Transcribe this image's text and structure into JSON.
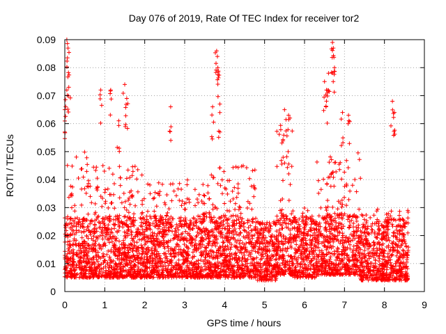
{
  "chart_data": {
    "type": "scatter",
    "title": "Day 076 of 2019, Rate Of TEC Index for receiver tor2",
    "xlabel": "GPS time / hours",
    "ylabel": "ROTI / TECUs",
    "xlim": [
      0,
      9
    ],
    "ylim": [
      0,
      0.09
    ],
    "xticks": [
      "0",
      "1",
      "2",
      "3",
      "4",
      "5",
      "6",
      "7",
      "8",
      "9"
    ],
    "yticks": [
      "0",
      "0.01",
      "0.02",
      "0.03",
      "0.04",
      "0.05",
      "0.06",
      "0.07",
      "0.08",
      "0.09"
    ],
    "grid": true,
    "marker": "+",
    "color": "#ff0000",
    "data_coverage_hours": [
      0,
      8.6
    ],
    "series": [
      {
        "name": "ROTI",
        "note": "dense scatter of ~5000 points; baseline typically 0.005-0.025 TECU/s with frequent excursions to 0.03-0.05",
        "peaks": [
          {
            "x": 0.05,
            "y": 0.09
          },
          {
            "x": 0.08,
            "y": 0.087
          },
          {
            "x": 0.05,
            "y": 0.072
          },
          {
            "x": 0.1,
            "y": 0.073
          },
          {
            "x": 0.0,
            "y": 0.065
          },
          {
            "x": 0.9,
            "y": 0.072
          },
          {
            "x": 1.15,
            "y": 0.072
          },
          {
            "x": 1.5,
            "y": 0.074
          },
          {
            "x": 1.55,
            "y": 0.069
          },
          {
            "x": 1.35,
            "y": 0.061
          },
          {
            "x": 2.65,
            "y": 0.066
          },
          {
            "x": 3.8,
            "y": 0.086
          },
          {
            "x": 3.82,
            "y": 0.084
          },
          {
            "x": 3.83,
            "y": 0.08
          },
          {
            "x": 3.88,
            "y": 0.067
          },
          {
            "x": 3.7,
            "y": 0.066
          },
          {
            "x": 5.5,
            "y": 0.065
          },
          {
            "x": 5.6,
            "y": 0.063
          },
          {
            "x": 6.5,
            "y": 0.075
          },
          {
            "x": 6.55,
            "y": 0.072
          },
          {
            "x": 6.6,
            "y": 0.078
          },
          {
            "x": 6.7,
            "y": 0.089
          },
          {
            "x": 6.72,
            "y": 0.087
          },
          {
            "x": 6.75,
            "y": 0.08
          },
          {
            "x": 6.95,
            "y": 0.064
          },
          {
            "x": 7.1,
            "y": 0.063
          },
          {
            "x": 8.2,
            "y": 0.068
          },
          {
            "x": 8.25,
            "y": 0.064
          }
        ],
        "baseline_bands": [
          {
            "x": [
              0,
              0.6
            ],
            "y": [
              0.005,
              0.05
            ]
          },
          {
            "x": [
              0.6,
              2.0
            ],
            "y": [
              0.005,
              0.045
            ]
          },
          {
            "x": [
              2.0,
              3.5
            ],
            "y": [
              0.005,
              0.04
            ]
          },
          {
            "x": [
              3.5,
              4.8
            ],
            "y": [
              0.005,
              0.045
            ]
          },
          {
            "x": [
              4.8,
              5.3
            ],
            "y": [
              0.004,
              0.025
            ]
          },
          {
            "x": [
              5.3,
              5.7
            ],
            "y": [
              0.006,
              0.06
            ]
          },
          {
            "x": [
              5.7,
              6.3
            ],
            "y": [
              0.005,
              0.03
            ]
          },
          {
            "x": [
              6.3,
              7.4
            ],
            "y": [
              0.006,
              0.05
            ]
          },
          {
            "x": [
              7.4,
              8.6
            ],
            "y": [
              0.004,
              0.03
            ]
          }
        ]
      }
    ]
  }
}
